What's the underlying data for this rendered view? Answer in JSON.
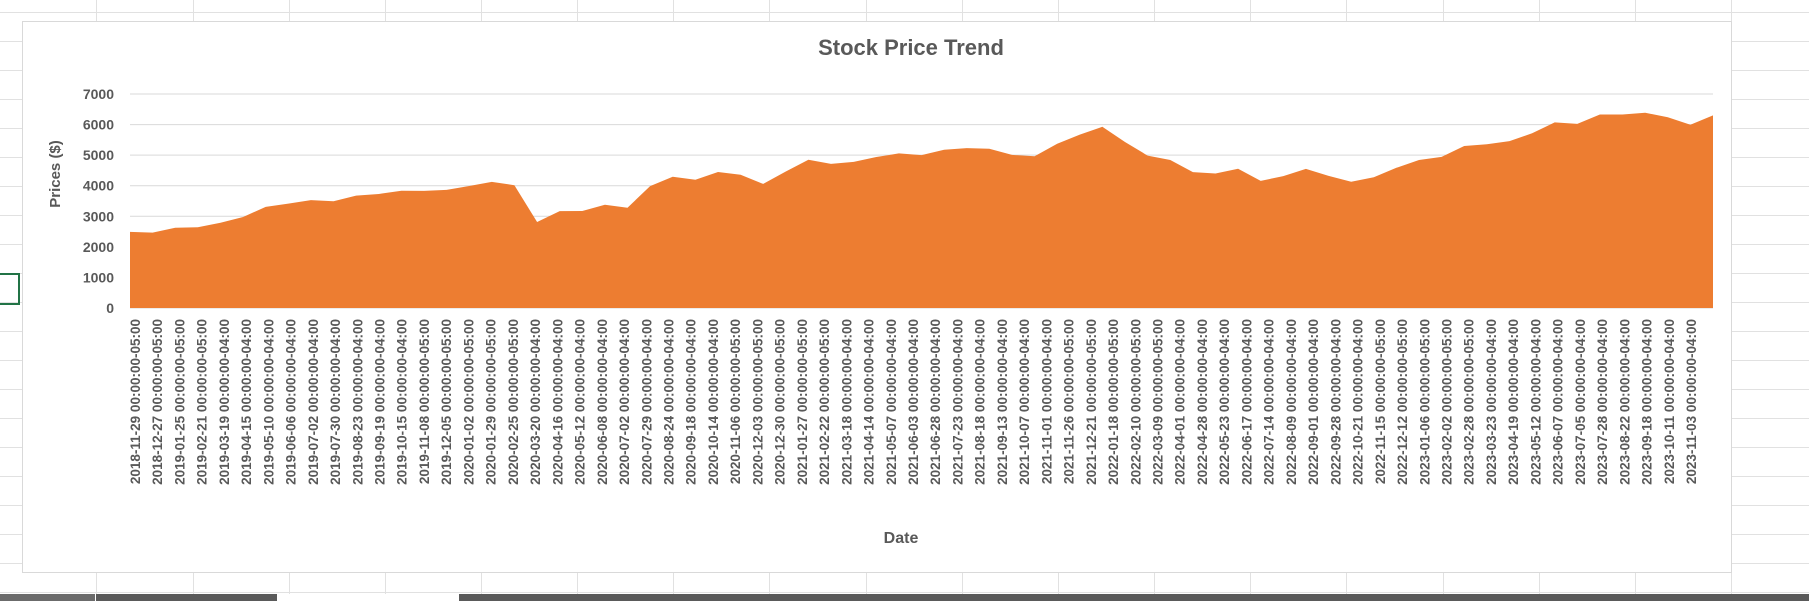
{
  "colors": {
    "area_fill": "#ED7D31",
    "gridline": "#d9d9d9",
    "text": "#595959",
    "sheet_grid": "#e1e1e1",
    "selection": "#217346"
  },
  "chart_data": {
    "type": "area",
    "title": "Stock Price Trend",
    "xlabel": "Date",
    "ylabel": "Prices ($)",
    "ylim": [
      0,
      7000
    ],
    "yticks": [
      0,
      1000,
      2000,
      3000,
      4000,
      5000,
      6000,
      7000
    ],
    "grid": true,
    "legend": "none",
    "tick_labels": [
      "2018-11-29 00:00:00-05:00",
      "2018-12-27 00:00:00-05:00",
      "2019-01-25 00:00:00-05:00",
      "2019-02-21 00:00:00-05:00",
      "2019-03-19 00:00:00-04:00",
      "2019-04-15 00:00:00-04:00",
      "2019-05-10 00:00:00-04:00",
      "2019-06-06 00:00:00-04:00",
      "2019-07-02 00:00:00-04:00",
      "2019-07-30 00:00:00-04:00",
      "2019-08-23 00:00:00-04:00",
      "2019-09-19 00:00:00-04:00",
      "2019-10-15 00:00:00-04:00",
      "2019-11-08 00:00:00-05:00",
      "2019-12-05 00:00:00-05:00",
      "2020-01-02 00:00:00-05:00",
      "2020-01-29 00:00:00-05:00",
      "2020-02-25 00:00:00-05:00",
      "2020-03-20 00:00:00-04:00",
      "2020-04-16 00:00:00-04:00",
      "2020-05-12 00:00:00-04:00",
      "2020-06-08 00:00:00-04:00",
      "2020-07-02 00:00:00-04:00",
      "2020-07-29 00:00:00-04:00",
      "2020-08-24 00:00:00-04:00",
      "2020-09-18 00:00:00-04:00",
      "2020-10-14 00:00:00-04:00",
      "2020-11-06 00:00:00-05:00",
      "2020-12-03 00:00:00-05:00",
      "2020-12-30 00:00:00-05:00",
      "2021-01-27 00:00:00-05:00",
      "2021-02-22 00:00:00-05:00",
      "2021-03-18 00:00:00-04:00",
      "2021-04-14 00:00:00-04:00",
      "2021-05-07 00:00:00-04:00",
      "2021-06-03 00:00:00-04:00",
      "2021-06-28 00:00:00-04:00",
      "2021-07-23 00:00:00-04:00",
      "2021-08-18 00:00:00-04:00",
      "2021-09-13 00:00:00-04:00",
      "2021-10-07 00:00:00-04:00",
      "2021-11-01 00:00:00-04:00",
      "2021-11-26 00:00:00-05:00",
      "2021-12-21 00:00:00-05:00",
      "2022-01-18 00:00:00-05:00",
      "2022-02-10 00:00:00-05:00",
      "2022-03-09 00:00:00-05:00",
      "2022-04-01 00:00:00-04:00",
      "2022-04-28 00:00:00-04:00",
      "2022-05-23 00:00:00-04:00",
      "2022-06-17 00:00:00-04:00",
      "2022-07-14 00:00:00-04:00",
      "2022-08-09 00:00:00-04:00",
      "2022-09-01 00:00:00-04:00",
      "2022-09-28 00:00:00-04:00",
      "2022-10-21 00:00:00-04:00",
      "2022-11-15 00:00:00-05:00",
      "2022-12-12 00:00:00-05:00",
      "2023-01-06 00:00:00-05:00",
      "2023-02-02 00:00:00-05:00",
      "2023-02-28 00:00:00-05:00",
      "2023-03-23 00:00:00-04:00",
      "2023-04-19 00:00:00-04:00",
      "2023-05-12 00:00:00-04:00",
      "2023-06-07 00:00:00-04:00",
      "2023-07-05 00:00:00-04:00",
      "2023-07-28 00:00:00-04:00",
      "2023-08-22 00:00:00-04:00",
      "2023-09-18 00:00:00-04:00",
      "2023-10-11 00:00:00-04:00",
      "2023-11-03 00:00:00-04:00"
    ],
    "series": [
      {
        "values": [
          2560,
          2480,
          2580,
          2700,
          2790,
          2920,
          3350,
          3400,
          3460,
          3520,
          3650,
          3800,
          3850,
          3790,
          3920,
          3990,
          4070,
          4060,
          2800,
          3100,
          3200,
          3350,
          3350,
          4000,
          4250,
          4250,
          4450,
          4300,
          4100,
          4450,
          4780,
          4740,
          4750,
          5010,
          5070,
          4960,
          5230,
          5230,
          5150,
          5050,
          4950,
          5300,
          5700,
          5900,
          5500,
          5000,
          4800,
          4500,
          4400,
          4500,
          4200,
          4300,
          4480,
          4350,
          4100,
          4350,
          4600,
          4800,
          5000,
          5300,
          5300,
          5500,
          5700,
          6000,
          6050,
          6300,
          6400,
          6400,
          6200,
          6050,
          6300
        ]
      }
    ]
  }
}
